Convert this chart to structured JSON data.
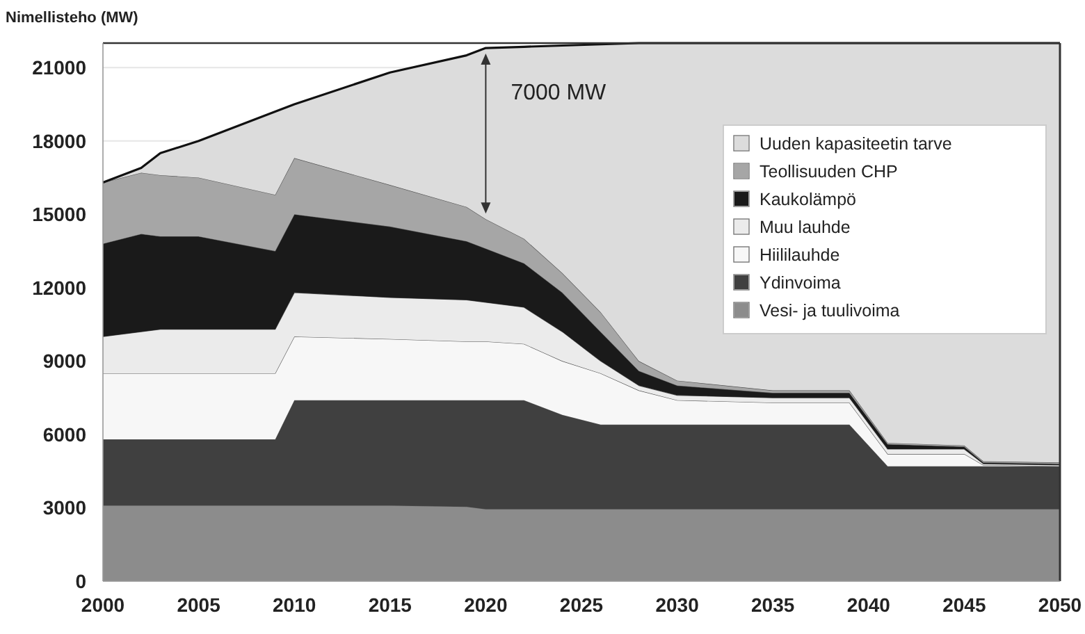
{
  "chart_data": {
    "type": "area",
    "stacked": true,
    "ylabel": "Nimellisteho (MW)",
    "x": [
      2000,
      2002,
      2003,
      2005,
      2009,
      2010,
      2015,
      2019,
      2020,
      2022,
      2024,
      2026,
      2028,
      2030,
      2035,
      2039,
      2041,
      2045,
      2046,
      2050
    ],
    "series": [
      {
        "name": "Vesi- ja tuulivoima",
        "color": "#8c8c8c",
        "values": [
          3100,
          3100,
          3100,
          3100,
          3100,
          3100,
          3100,
          3050,
          2950,
          2950,
          2950,
          2950,
          2950,
          2950,
          2950,
          2950,
          2950,
          2950,
          2950,
          2950
        ]
      },
      {
        "name": "Ydinvoima",
        "color": "#404040",
        "values": [
          2700,
          2700,
          2700,
          2700,
          2700,
          4300,
          4300,
          4350,
          4450,
          4450,
          3850,
          3450,
          3450,
          3450,
          3450,
          3450,
          1750,
          1750,
          1750,
          1750
        ]
      },
      {
        "name": "Hiililauhde",
        "color": "#f7f7f7",
        "values": [
          2700,
          2700,
          2700,
          2700,
          2700,
          2600,
          2500,
          2400,
          2400,
          2300,
          2200,
          2100,
          1400,
          1000,
          900,
          900,
          500,
          500,
          50,
          0
        ]
      },
      {
        "name": "Muu lauhde",
        "color": "#ebebeb",
        "values": [
          1500,
          1700,
          1800,
          1800,
          1800,
          1800,
          1700,
          1700,
          1600,
          1500,
          1200,
          500,
          200,
          200,
          200,
          200,
          200,
          200,
          50,
          50
        ]
      },
      {
        "name": "Kaukolämpö",
        "color": "#1a1a1a",
        "values": [
          3800,
          4000,
          3800,
          3800,
          3200,
          3200,
          2900,
          2400,
          2200,
          1800,
          1600,
          1200,
          600,
          400,
          200,
          200,
          200,
          100,
          50,
          50
        ]
      },
      {
        "name": "Teollisuuden CHP",
        "color": "#a6a6a6",
        "values": [
          2500,
          2500,
          2500,
          2400,
          2300,
          2300,
          1700,
          1400,
          1200,
          1000,
          800,
          800,
          400,
          200,
          100,
          100,
          50,
          50,
          50,
          50
        ]
      },
      {
        "name": "Uuden kapasiteetin tarve",
        "color": "#dcdcdc",
        "values": [
          0,
          200,
          900,
          1500,
          3400,
          2200,
          4600,
          6200,
          7000,
          7850,
          9300,
          10950,
          13000,
          13800,
          14200,
          14200,
          16350,
          16450,
          17100,
          17150
        ]
      }
    ],
    "xlim": [
      2000,
      2050
    ],
    "xticks": [
      2000,
      2005,
      2010,
      2015,
      2020,
      2025,
      2030,
      2035,
      2040,
      2045,
      2050
    ],
    "ylim": [
      0,
      22000
    ],
    "yticks": [
      0,
      3000,
      6000,
      9000,
      12000,
      15000,
      18000,
      21000
    ],
    "grid": "y",
    "legend": "right",
    "annotations": [
      "7000 MW"
    ]
  }
}
